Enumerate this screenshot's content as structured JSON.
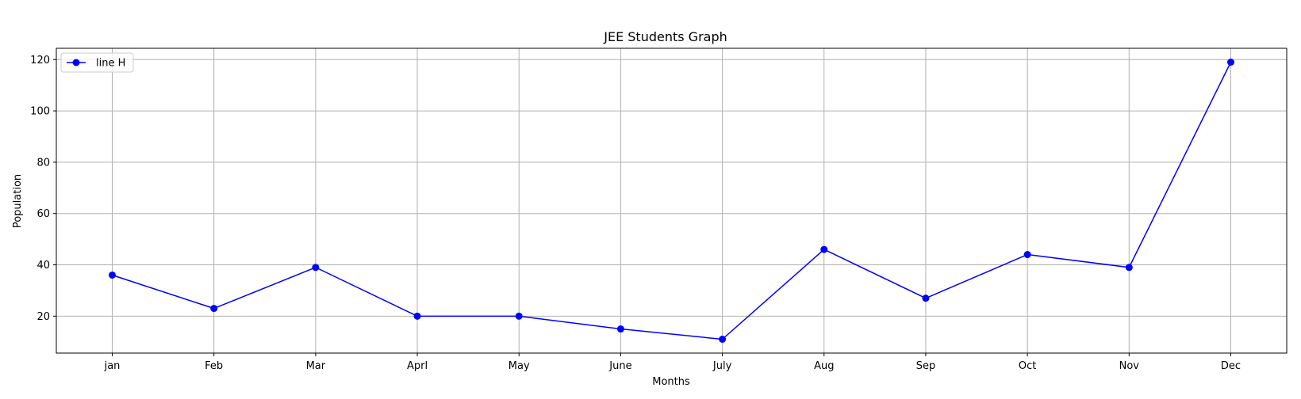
{
  "chart_data": {
    "type": "line",
    "title": "JEE Students Graph",
    "xlabel": "Months",
    "ylabel": "Population",
    "categories": [
      "jan",
      "Feb",
      "Mar",
      "Aprl",
      "May",
      "June",
      "July",
      "Aug",
      "Sep",
      "Oct",
      "Nov",
      "Dec"
    ],
    "series": [
      {
        "name": "line H",
        "color": "#0000ff",
        "marker": "circle",
        "values": [
          36,
          23,
          39,
          20,
          20,
          15,
          11,
          46,
          27,
          44,
          39,
          119
        ]
      }
    ],
    "ylim": [
      5.6,
      124.4
    ],
    "yticks": [
      20,
      40,
      60,
      80,
      100,
      120
    ],
    "grid": true,
    "legend_position": "top-left",
    "colors": {
      "grid": "#b0b0b0",
      "axis": "#000000",
      "series": "#0000ff"
    }
  }
}
